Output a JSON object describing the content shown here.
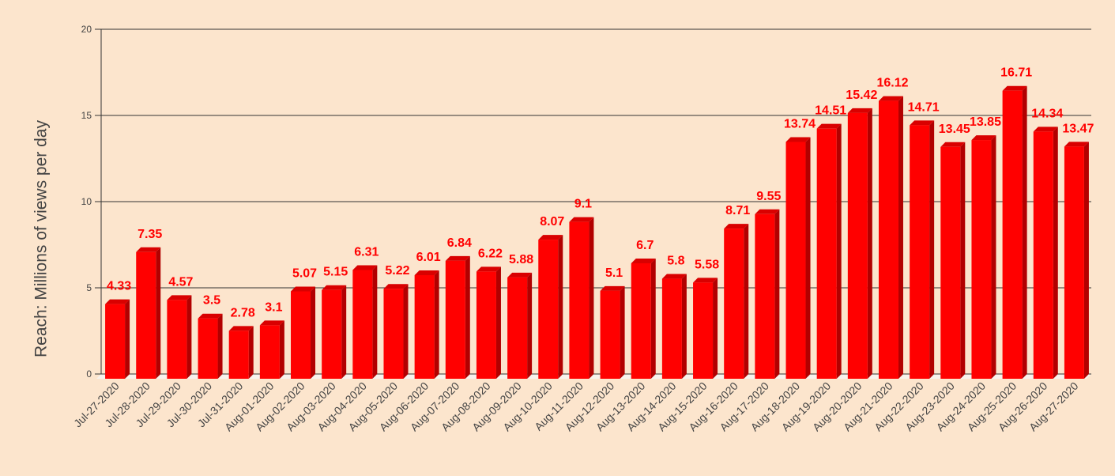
{
  "chart_data": {
    "type": "bar",
    "title": "",
    "xlabel": "",
    "ylabel": "Reach: Millions of views per day",
    "ylim": [
      0,
      20
    ],
    "yticks": [
      0,
      5,
      10,
      15,
      20
    ],
    "grid": true,
    "legend": "none",
    "style": "3d-column",
    "colors": {
      "bar_front": "#ff0000",
      "bar_side": "#b20000",
      "bar_top": "#d90000",
      "data_label": "#ff0000",
      "background": "#fce5cd",
      "grid": "#333333",
      "text": "#444444"
    },
    "categories": [
      "Jul-27-2020",
      "Jul-28-2020",
      "Jul-29-2020",
      "Jul-30-2020",
      "Jul-31-2020",
      "Aug-01-2020",
      "Aug-02-2020",
      "Aug-03-2020",
      "Aug-04-2020",
      "Aug-05-2020",
      "Aug-06-2020",
      "Aug-07-2020",
      "Aug-08-2020",
      "Aug-09-2020",
      "Aug-10-2020",
      "Aug-11-2020",
      "Aug-12-2020",
      "Aug-13-2020",
      "Aug-14-2020",
      "Aug-15-2020",
      "Aug-16-2020",
      "Aug-17-2020",
      "Aug-18-2020",
      "Aug-19-2020",
      "Aug-20-2020",
      "Aug-21-2020",
      "Aug-22-2020",
      "Aug-23-2020",
      "Aug-24-2020",
      "Aug-25-2020",
      "Aug-26-2020",
      "Aug-27-2020"
    ],
    "values": [
      4.33,
      7.35,
      4.57,
      3.5,
      2.78,
      3.1,
      5.07,
      5.15,
      6.31,
      5.22,
      6.01,
      6.84,
      6.22,
      5.88,
      8.07,
      9.1,
      5.1,
      6.7,
      5.8,
      5.58,
      8.71,
      9.55,
      13.74,
      14.51,
      15.42,
      16.12,
      14.71,
      13.45,
      13.85,
      16.71,
      14.34,
      13.47
    ]
  }
}
